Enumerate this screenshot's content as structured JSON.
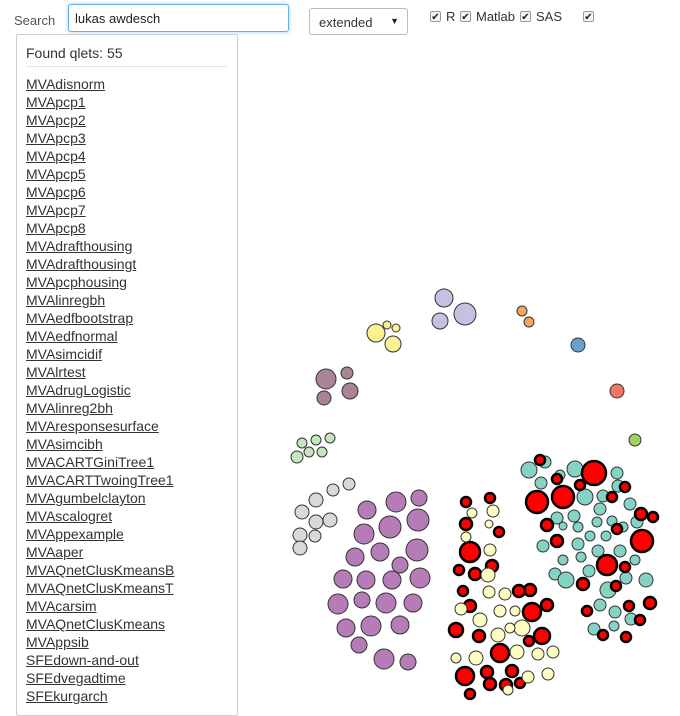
{
  "search": {
    "label": "Search",
    "value": "lukas awdesch"
  },
  "mode_select": {
    "selected": "extended"
  },
  "filters": [
    {
      "name": "R",
      "checked": true
    },
    {
      "name": "Matlab",
      "checked": true
    },
    {
      "name": "SAS",
      "checked": true
    },
    {
      "name": "",
      "checked": true
    }
  ],
  "results": {
    "found_label": "Found qlets: 55",
    "items": [
      "MVAdisnorm",
      "MVApcp1",
      "MVApcp2",
      "MVApcp3",
      "MVApcp4",
      "MVApcp5",
      "MVApcp6",
      "MVApcp7",
      "MVApcp8",
      "MVAdrafthousing",
      "MVAdrafthousingt",
      "MVApcphousing",
      "MVAlinregbh",
      "MVAedfbootstrap",
      "MVAedfnormal",
      "MVAsimcidif",
      "MVAlrtest",
      "MVAdrugLogistic",
      "MVAlinreg2bh",
      "MVAresponsesurface",
      "MVAsimcibh",
      "MVACARTGiniTree1",
      "MVACARTTwoingTree1",
      "MVAgumbelclayton",
      "MVAscalogret",
      "MVAppexample",
      "MVAaper",
      "MVAQnetClusKmeansB",
      "MVAQnetClusKmeansT",
      "MVAcarsim",
      "MVAQnetClusKmeans",
      "MVAppsib",
      "SFEdown-and-out",
      "SFEdvegadtime",
      "SFEkurgarch"
    ]
  },
  "colors": {
    "purple": "#b57cb7",
    "lavender": "#c7c1e1",
    "yellow": "#fbf293",
    "orange": "#f4a85e",
    "blue": "#6a9fd0",
    "salmon": "#f27467",
    "mauve": "#a98396",
    "lightgreen": "#c5e5bd",
    "green": "#9fd161",
    "gray": "#d9d9d9",
    "cream": "#fefdc2",
    "red": "#ff0000",
    "teal": "#85d3c4"
  }
}
